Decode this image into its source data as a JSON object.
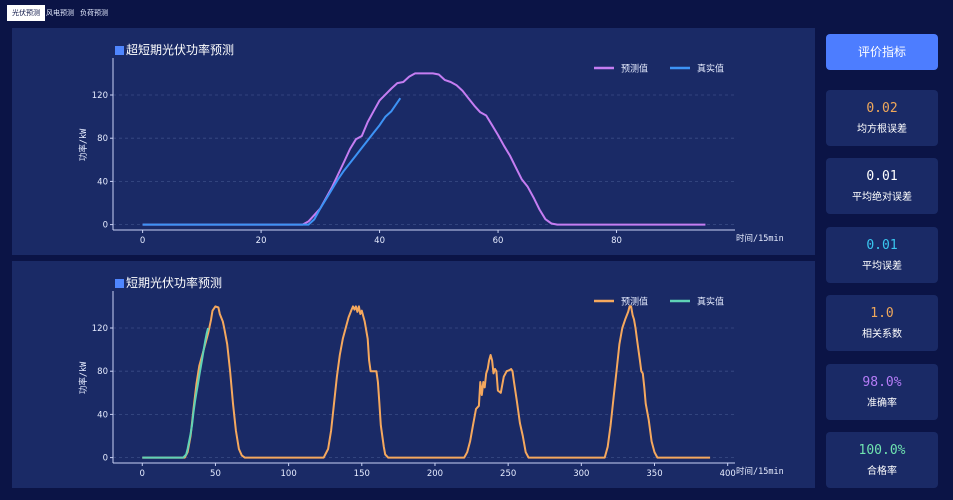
{
  "tabs": [
    {
      "label": "光伏预测",
      "active": true
    },
    {
      "label": "风电预测",
      "active": false
    },
    {
      "label": "负荷预测",
      "active": false
    }
  ],
  "sidebar": {
    "eval_button": "评价指标",
    "metrics": [
      {
        "value": "0.02",
        "label": "均方根误差",
        "color": "#f0a85a"
      },
      {
        "value": "0.01",
        "label": "平均绝对误差",
        "color": "#ffffff"
      },
      {
        "value": "0.01",
        "label": "平均误差",
        "color": "#39c6f0"
      },
      {
        "value": "1.0",
        "label": "相关系数",
        "color": "#f0a85a"
      },
      {
        "value": "98.0%",
        "label": "准确率",
        "color": "#b57cf7"
      },
      {
        "value": "100.0%",
        "label": "合格率",
        "color": "#6fe3b0"
      }
    ]
  },
  "chart_data": [
    {
      "type": "line",
      "title": "超短期光伏功率预测",
      "xlabel": "时间/15min",
      "ylabel": "功率/kW",
      "xlim": [
        -5,
        100
      ],
      "ylim": [
        -5,
        145
      ],
      "xticks": [
        0,
        20,
        40,
        60,
        80
      ],
      "yticks": [
        0,
        40,
        80,
        120
      ],
      "grid": "horizontal-dashed",
      "legend": "top-right",
      "series": [
        {
          "name": "预测值",
          "color": "#c57df2",
          "points": [
            [
              0,
              0
            ],
            [
              10,
              0
            ],
            [
              20,
              0
            ],
            [
              27,
              0
            ],
            [
              28,
              3
            ],
            [
              30,
              15
            ],
            [
              32,
              35
            ],
            [
              34,
              58
            ],
            [
              35,
              70
            ],
            [
              36,
              79
            ],
            [
              37,
              82
            ],
            [
              38,
              95
            ],
            [
              39,
              105
            ],
            [
              40,
              115
            ],
            [
              42,
              126
            ],
            [
              43,
              131
            ],
            [
              44,
              132
            ],
            [
              45,
              137
            ],
            [
              46,
              140
            ],
            [
              47,
              140
            ],
            [
              48,
              140
            ],
            [
              49,
              140
            ],
            [
              50,
              139
            ],
            [
              51,
              134
            ],
            [
              52,
              132
            ],
            [
              53,
              129
            ],
            [
              54,
              124
            ],
            [
              55,
              117
            ],
            [
              56,
              110
            ],
            [
              57,
              104
            ],
            [
              58,
              101
            ],
            [
              59,
              92
            ],
            [
              60,
              83
            ],
            [
              61,
              73
            ],
            [
              62,
              64
            ],
            [
              63,
              53
            ],
            [
              64,
              42
            ],
            [
              65,
              35
            ],
            [
              66,
              25
            ],
            [
              67,
              14
            ],
            [
              68,
              5
            ],
            [
              69,
              1
            ],
            [
              70,
              0
            ],
            [
              75,
              0
            ],
            [
              80,
              0
            ],
            [
              90,
              0
            ],
            [
              95,
              0
            ]
          ]
        },
        {
          "name": "真实值",
          "color": "#3d93f5",
          "points": [
            [
              0,
              0
            ],
            [
              10,
              0
            ],
            [
              20,
              0
            ],
            [
              28,
              0
            ],
            [
              29,
              5
            ],
            [
              30,
              15
            ],
            [
              31,
              24
            ],
            [
              32,
              33
            ],
            [
              33,
              42
            ],
            [
              34,
              50
            ],
            [
              35,
              57
            ],
            [
              36,
              64
            ],
            [
              37,
              71
            ],
            [
              38,
              78
            ],
            [
              39,
              85
            ],
            [
              40,
              92
            ],
            [
              41,
              100
            ],
            [
              42,
              105
            ],
            [
              43,
              113
            ],
            [
              43.5,
              117
            ]
          ]
        }
      ]
    },
    {
      "type": "line",
      "title": "短期光伏功率预测",
      "xlabel": "时间/15min",
      "ylabel": "功率/kW",
      "xlim": [
        -20,
        405
      ],
      "ylim": [
        -5,
        145
      ],
      "xticks": [
        0,
        50,
        100,
        150,
        200,
        250,
        300,
        350,
        400
      ],
      "yticks": [
        0,
        40,
        80,
        120
      ],
      "grid": "horizontal-dashed",
      "legend": "top-right",
      "series": [
        {
          "name": "预测值",
          "color": "#f5a85e",
          "points": [
            [
              0,
              0
            ],
            [
              25,
              0
            ],
            [
              29,
              0
            ],
            [
              31,
              5
            ],
            [
              33,
              20
            ],
            [
              35,
              45
            ],
            [
              37,
              68
            ],
            [
              39,
              85
            ],
            [
              41,
              95
            ],
            [
              43,
              105
            ],
            [
              45,
              115
            ],
            [
              47,
              128
            ],
            [
              48,
              136
            ],
            [
              50,
              140
            ],
            [
              52,
              139
            ],
            [
              53,
              133
            ],
            [
              55,
              126
            ],
            [
              56,
              120
            ],
            [
              58,
              105
            ],
            [
              60,
              80
            ],
            [
              62,
              50
            ],
            [
              64,
              25
            ],
            [
              66,
              8
            ],
            [
              68,
              2
            ],
            [
              70,
              0
            ],
            [
              100,
              0
            ],
            [
              124,
              0
            ],
            [
              127,
              8
            ],
            [
              129,
              25
            ],
            [
              131,
              50
            ],
            [
              133,
              75
            ],
            [
              135,
              95
            ],
            [
              137,
              110
            ],
            [
              139,
              120
            ],
            [
              141,
              130
            ],
            [
              143,
              137
            ],
            [
              144,
              140
            ],
            [
              145,
              137
            ],
            [
              146,
              140
            ],
            [
              147,
              135
            ],
            [
              148,
              140
            ],
            [
              149,
              133
            ],
            [
              150,
              136
            ],
            [
              152,
              126
            ],
            [
              154,
              110
            ],
            [
              155,
              90
            ],
            [
              156,
              80
            ],
            [
              160,
              80
            ],
            [
              161,
              70
            ],
            [
              162,
              50
            ],
            [
              163,
              30
            ],
            [
              165,
              10
            ],
            [
              166,
              3
            ],
            [
              168,
              0
            ],
            [
              200,
              0
            ],
            [
              220,
              0
            ],
            [
              222,
              5
            ],
            [
              224,
              15
            ],
            [
              226,
              30
            ],
            [
              228,
              45
            ],
            [
              230,
              48
            ],
            [
              231,
              70
            ],
            [
              232,
              58
            ],
            [
              233,
              70
            ],
            [
              234,
              65
            ],
            [
              235,
              78
            ],
            [
              236,
              82
            ],
            [
              237,
              90
            ],
            [
              238,
              95
            ],
            [
              239,
              90
            ],
            [
              240,
              78
            ],
            [
              241,
              82
            ],
            [
              242,
              80
            ],
            [
              243,
              62
            ],
            [
              245,
              60
            ],
            [
              247,
              75
            ],
            [
              249,
              80
            ],
            [
              251,
              81
            ],
            [
              252,
              82
            ],
            [
              253,
              80
            ],
            [
              254,
              70
            ],
            [
              256,
              52
            ],
            [
              258,
              32
            ],
            [
              260,
              20
            ],
            [
              262,
              5
            ],
            [
              264,
              0
            ],
            [
              300,
              0
            ],
            [
              316,
              0
            ],
            [
              318,
              10
            ],
            [
              320,
              30
            ],
            [
              322,
              55
            ],
            [
              324,
              80
            ],
            [
              326,
              105
            ],
            [
              328,
              120
            ],
            [
              330,
              128
            ],
            [
              332,
              135
            ],
            [
              333,
              140
            ],
            [
              334,
              140
            ],
            [
              335,
              132
            ],
            [
              336,
              128
            ],
            [
              337,
              120
            ],
            [
              338,
              110
            ],
            [
              339,
              100
            ],
            [
              340,
              90
            ],
            [
              341,
              80
            ],
            [
              342,
              78
            ],
            [
              343,
              65
            ],
            [
              344,
              50
            ],
            [
              346,
              35
            ],
            [
              348,
              15
            ],
            [
              350,
              5
            ],
            [
              352,
              0
            ],
            [
              388,
              0
            ]
          ]
        },
        {
          "name": "真实值",
          "color": "#5fd2b6",
          "points": [
            [
              0,
              0
            ],
            [
              25,
              0
            ],
            [
              28,
              0
            ],
            [
              30,
              3
            ],
            [
              31,
              8
            ],
            [
              32,
              15
            ],
            [
              33,
              22
            ],
            [
              34,
              30
            ],
            [
              35,
              42
            ],
            [
              36,
              52
            ],
            [
              37,
              60
            ],
            [
              38,
              68
            ],
            [
              39,
              76
            ],
            [
              40,
              84
            ],
            [
              41,
              92
            ],
            [
              42,
              100
            ],
            [
              43,
              108
            ],
            [
              44,
              115
            ],
            [
              45,
              120
            ]
          ]
        }
      ]
    }
  ]
}
